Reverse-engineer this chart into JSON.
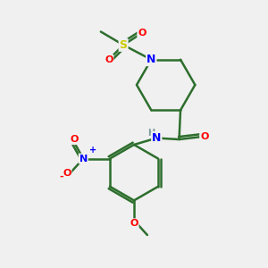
{
  "background_color": "#f0f0f0",
  "bond_color": "#2d6e2d",
  "atom_colors": {
    "N": "#0000ff",
    "O": "#ff0000",
    "S": "#cccc00",
    "H": "#7a9a9a",
    "C": "#2d6e2d"
  },
  "figsize": [
    3.0,
    3.0
  ],
  "dpi": 100
}
